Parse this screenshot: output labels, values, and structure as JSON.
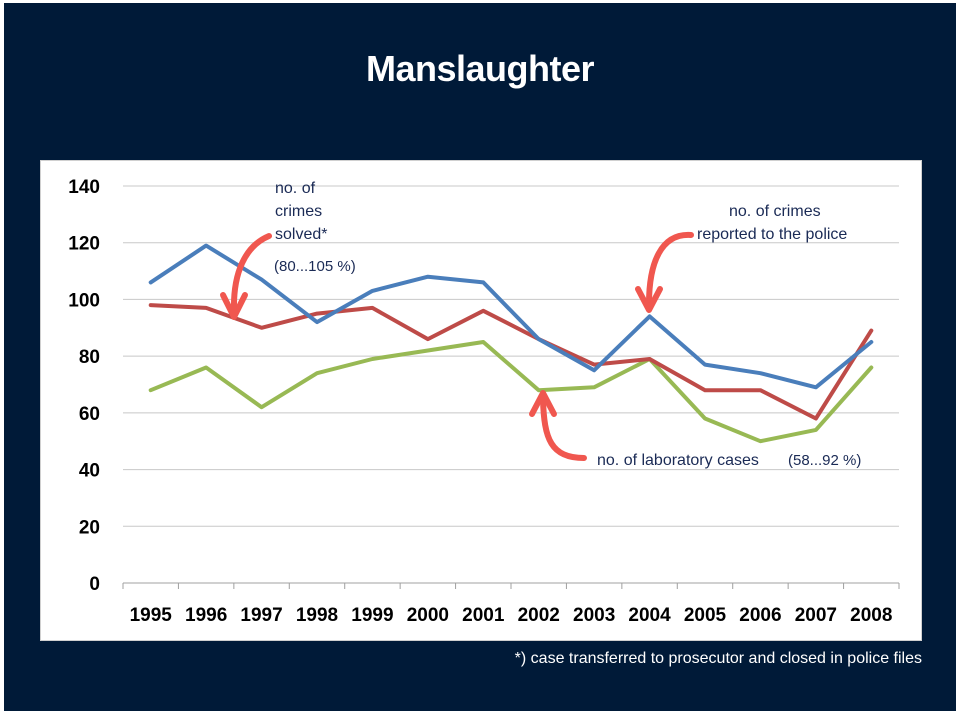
{
  "slide": {
    "title": "Manslaughter",
    "footnote": "*) case transferred to prosecutor and closed in police files"
  },
  "colors": {
    "background": "#001a38",
    "blue": "#4a7ebb",
    "red": "#be4b48",
    "green": "#98b954",
    "arrow": "#f0574f",
    "grid": "#c8c8c8"
  },
  "annotations": {
    "solved_line1": "no. of",
    "solved_line2": "crimes",
    "solved_line3": "solved*",
    "solved_range": "(80...105 %)",
    "reported_line1": "no. of crimes",
    "reported_line2": "reported to the police",
    "lab_label": "no. of laboratory cases",
    "lab_range": "(58...92 %)"
  },
  "chart_data": {
    "type": "line",
    "title": "Manslaughter",
    "xlabel": "",
    "ylabel": "",
    "ylim": [
      0,
      140
    ],
    "yticks": [
      "0",
      "20",
      "40",
      "60",
      "80",
      "100",
      "120",
      "140"
    ],
    "grid": true,
    "categories": [
      "1995",
      "1996",
      "1997",
      "1998",
      "1999",
      "2000",
      "2001",
      "2002",
      "2003",
      "2004",
      "2005",
      "2006",
      "2007",
      "2008"
    ],
    "series": [
      {
        "name": "no. of crimes reported to the police",
        "color": "#4a7ebb",
        "values": [
          106,
          119,
          107,
          92,
          103,
          108,
          106,
          86,
          75,
          94,
          77,
          74,
          69,
          85
        ]
      },
      {
        "name": "no. of crimes solved*",
        "color": "#be4b48",
        "values": [
          98,
          97,
          90,
          95,
          97,
          86,
          96,
          86,
          77,
          79,
          68,
          68,
          58,
          89
        ]
      },
      {
        "name": "no. of laboratory cases",
        "color": "#98b954",
        "values": [
          68,
          76,
          62,
          74,
          79,
          82,
          85,
          68,
          69,
          79,
          58,
          50,
          54,
          76
        ]
      }
    ]
  }
}
